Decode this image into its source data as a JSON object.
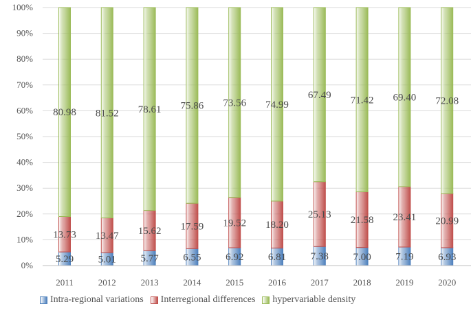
{
  "chart_data": {
    "type": "bar",
    "stacked": true,
    "percent_stacked": true,
    "categories": [
      "2011",
      "2012",
      "2013",
      "2014",
      "2015",
      "2016",
      "2017",
      "2018",
      "2019",
      "2020"
    ],
    "series": [
      {
        "name": "Intra-regional variations",
        "color": "#4f81bd",
        "values": [
          5.29,
          5.01,
          5.77,
          6.55,
          6.92,
          6.81,
          7.38,
          7.0,
          7.19,
          6.93
        ],
        "labels": [
          "5.29",
          "5.01",
          "5.77",
          "6.55",
          "6.92",
          "6.81",
          "7.38",
          "7.00",
          "7.19",
          "6.93"
        ]
      },
      {
        "name": "Interregional differences",
        "color": "#c0504d",
        "values": [
          13.73,
          13.47,
          15.62,
          17.59,
          19.52,
          18.2,
          25.13,
          21.58,
          23.41,
          20.99
        ],
        "labels": [
          "13.73",
          "13.47",
          "15.62",
          "17.59",
          "19.52",
          "18.20",
          "25.13",
          "21.58",
          "23.41",
          "20.99"
        ]
      },
      {
        "name": "hypervariable density",
        "color": "#9bbb59",
        "values": [
          80.98,
          81.52,
          78.61,
          75.86,
          73.56,
          74.99,
          67.49,
          71.42,
          69.4,
          72.08
        ],
        "labels": [
          "80.98",
          "81.52",
          "78.61",
          "75.86",
          "73.56",
          "74.99",
          "67.49",
          "71.42",
          "69.40",
          "72.08"
        ]
      }
    ],
    "yticks": [
      "0%",
      "10%",
      "20%",
      "30%",
      "40%",
      "50%",
      "60%",
      "70%",
      "80%",
      "90%",
      "100%"
    ],
    "ylim": [
      0,
      100
    ],
    "grid": true,
    "legend_position": "bottom"
  }
}
